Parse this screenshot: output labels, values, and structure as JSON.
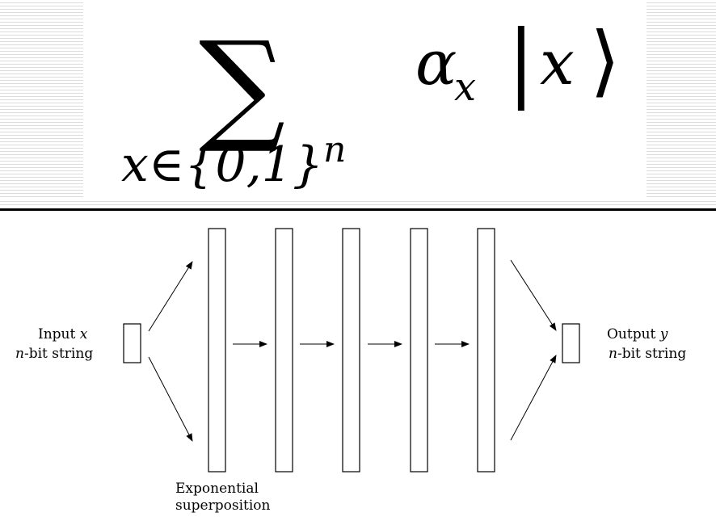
{
  "formula": {
    "sum_symbol": "∑",
    "alpha": "α",
    "alpha_subscript": "x",
    "ket_open": "|",
    "ket_var": "x",
    "ket_close": "⟩",
    "index_set": "x∈{0,1}",
    "index_exponent": "n"
  },
  "diagram": {
    "input_label_word": "Input",
    "input_label_var": "x",
    "input_desc_var": "n",
    "input_desc_rest": "-bit string",
    "output_label_word": "Output",
    "output_label_var": "y",
    "output_desc_var": "n",
    "output_desc_rest": "-bit string",
    "superposition_line1": "Exponential",
    "superposition_line2": "superposition"
  }
}
